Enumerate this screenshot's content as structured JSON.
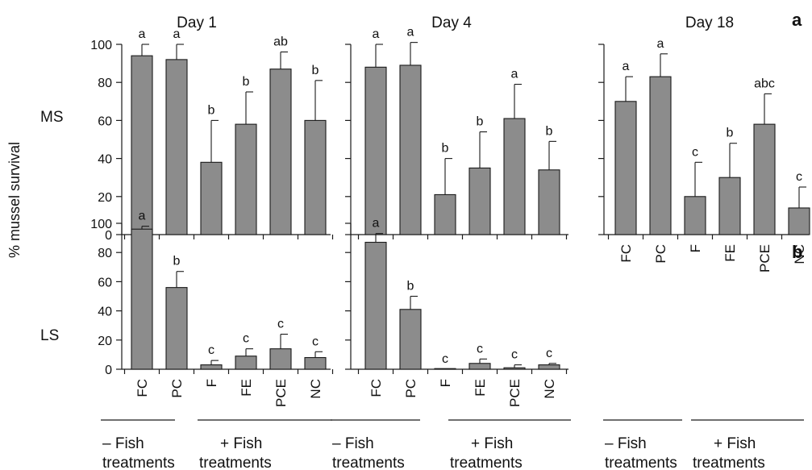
{
  "colors": {
    "bar_fill": "#8c8c8c",
    "stroke": "#1a1a1a",
    "background": "#ffffff"
  },
  "y_axis_label": "% mussel survival",
  "panel_labels": {
    "a": "a",
    "b": "b"
  },
  "row_labels": {
    "MS": "MS",
    "LS": "LS"
  },
  "group_labels": {
    "minus_fish": [
      "– Fish",
      "treatments"
    ],
    "plus_fish": [
      "+ Fish",
      "treatments"
    ]
  },
  "chart_data": [
    {
      "type": "bar",
      "row": "MS",
      "title": "Day 1",
      "categories": [
        "FC",
        "PC",
        "F",
        "FE",
        "PCE",
        "NC"
      ],
      "values": [
        94,
        92,
        38,
        58,
        87,
        60
      ],
      "error_upper": [
        100,
        100,
        60,
        75,
        96,
        81
      ],
      "significance": [
        "a",
        "a",
        "b",
        "b",
        "ab",
        "b"
      ],
      "ylim": [
        0,
        100
      ],
      "yticks": [
        0,
        20,
        40,
        60,
        80,
        100
      ],
      "show_tick_labels": true,
      "show_category_labels": false
    },
    {
      "type": "bar",
      "row": "MS",
      "title": "Day 4",
      "categories": [
        "FC",
        "PC",
        "F",
        "FE",
        "PCE",
        "NC"
      ],
      "values": [
        88,
        89,
        21,
        35,
        61,
        34
      ],
      "error_upper": [
        100,
        101,
        40,
        54,
        79,
        49
      ],
      "significance": [
        "a",
        "a",
        "b",
        "b",
        "a",
        "b"
      ],
      "ylim": [
        0,
        100
      ],
      "yticks": [
        0,
        20,
        40,
        60,
        80,
        100
      ],
      "show_tick_labels": false,
      "show_category_labels": false
    },
    {
      "type": "bar",
      "row": "MS",
      "title": "Day 18",
      "categories": [
        "FC",
        "PC",
        "F",
        "FE",
        "PCE",
        "NC"
      ],
      "values": [
        70,
        83,
        20,
        30,
        58,
        14
      ],
      "error_upper": [
        83,
        95,
        38,
        48,
        74,
        25
      ],
      "significance": [
        "a",
        "a",
        "c",
        "b",
        "abc",
        "c"
      ],
      "ylim": [
        0,
        100
      ],
      "yticks": [
        0,
        20,
        40,
        60,
        80,
        100
      ],
      "show_tick_labels": false,
      "show_category_labels": true
    },
    {
      "type": "bar",
      "row": "LS",
      "title": "",
      "categories": [
        "FC",
        "PC",
        "F",
        "FE",
        "PCE",
        "NC"
      ],
      "values": [
        96,
        56,
        3,
        9,
        14,
        8
      ],
      "error_upper": [
        98,
        67,
        6,
        14,
        24,
        12
      ],
      "significance": [
        "a",
        "b",
        "c",
        "c",
        "c",
        "c"
      ],
      "ylim": [
        0,
        100
      ],
      "yticks": [
        0,
        20,
        40,
        60,
        80,
        100
      ],
      "show_tick_labels": true,
      "show_category_labels": true
    },
    {
      "type": "bar",
      "row": "LS",
      "title": "",
      "categories": [
        "FC",
        "PC",
        "F",
        "FE",
        "PCE",
        "NC"
      ],
      "values": [
        87,
        41,
        0,
        4,
        1,
        3
      ],
      "error_upper": [
        93,
        50,
        0,
        7,
        3,
        4
      ],
      "significance": [
        "a",
        "b",
        "c",
        "c",
        "c",
        "c"
      ],
      "ylim": [
        0,
        100
      ],
      "yticks": [
        0,
        20,
        40,
        60,
        80,
        100
      ],
      "show_tick_labels": false,
      "show_category_labels": true
    }
  ]
}
